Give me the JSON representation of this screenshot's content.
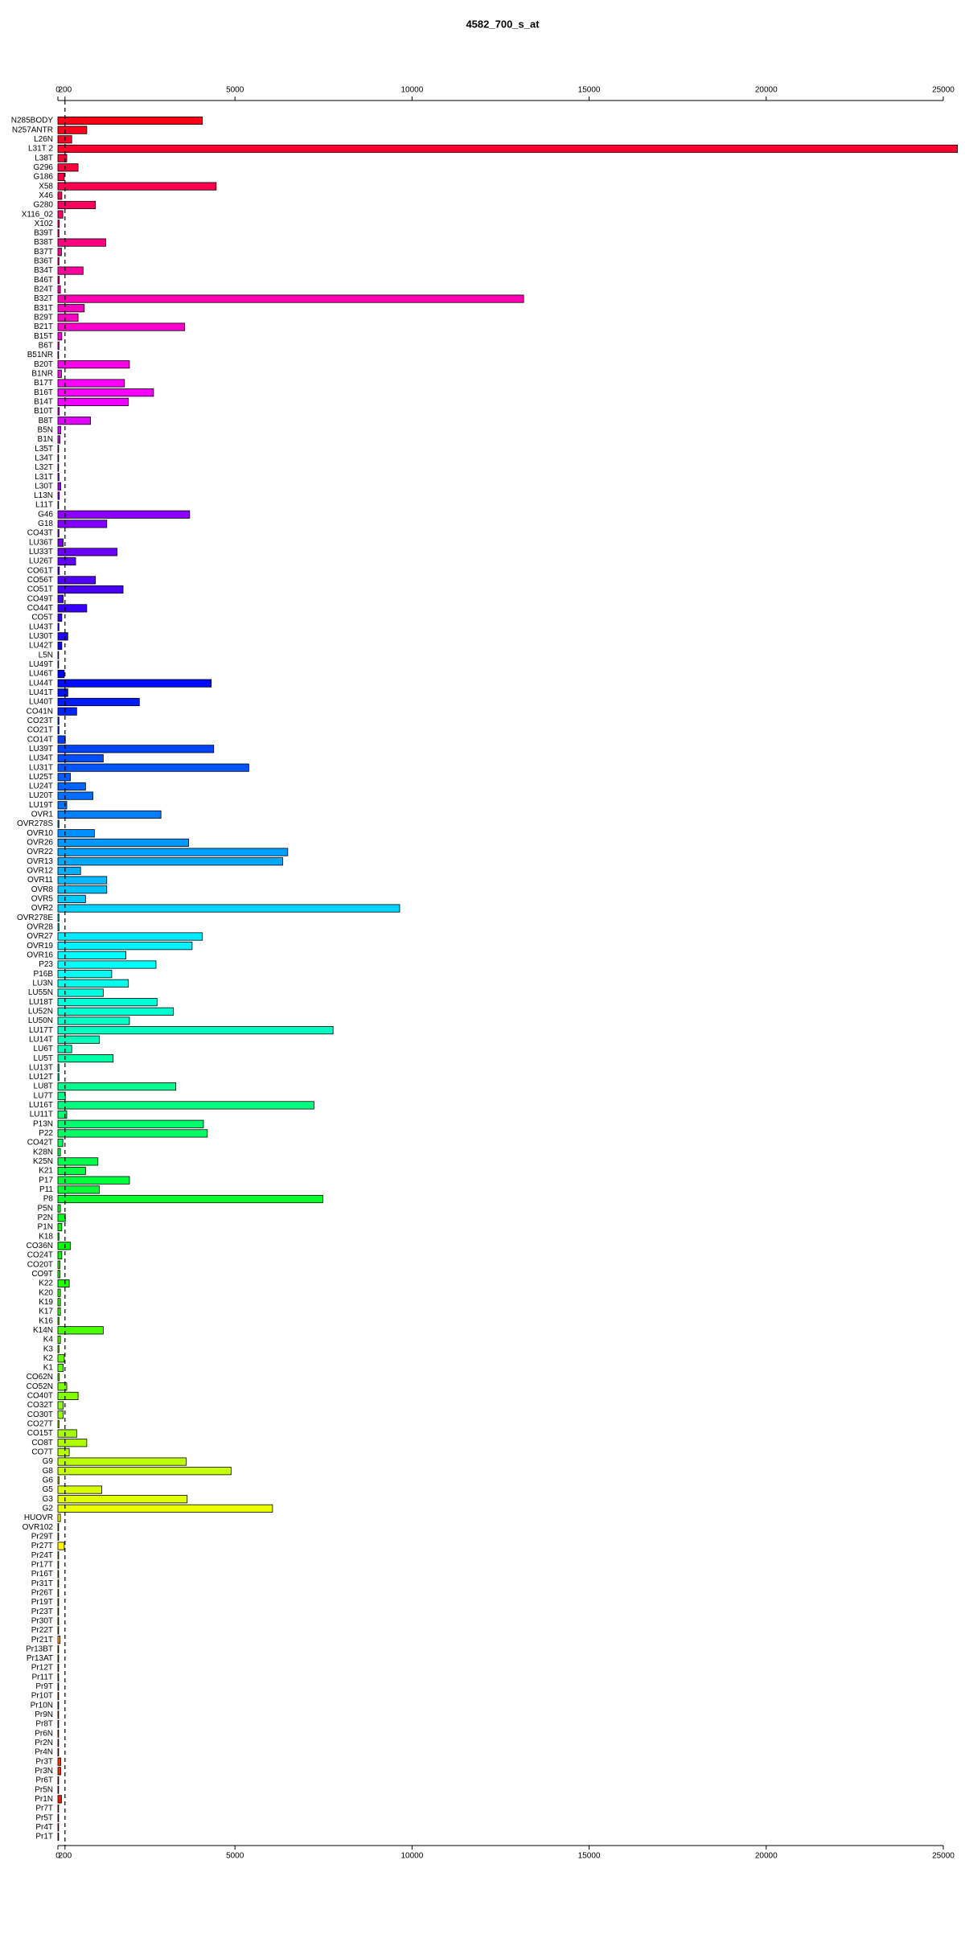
{
  "chart_data": {
    "type": "barh",
    "title": "4582_700_s_at",
    "categories": [
      "N285BODY",
      "N257ANTR",
      "L26N",
      "L31T 2",
      "L38T",
      "G296",
      "G186",
      "X58",
      "X46",
      "G280",
      "X116_02",
      "X102",
      "B39T",
      "B38T",
      "B37T",
      "B36T",
      "B34T",
      "B46T",
      "B24T",
      "B32T",
      "B31T",
      "B29T",
      "B21T",
      "B15T",
      "B6T",
      "B51NR",
      "B20T",
      "B1NR",
      "B17T",
      "B16T",
      "B14T",
      "B10T",
      "B8T",
      "B5N",
      "B1N",
      "L35T",
      "L34T",
      "L32T",
      "L31T",
      "L30T",
      "L13N",
      "L11T",
      "G46",
      "G18",
      "CO43T",
      "LU36T",
      "LU33T",
      "LU26T",
      "CO61T",
      "CO56T",
      "CO51T",
      "CO49T",
      "CO44T",
      "CO5T",
      "LU43T",
      "LU30T",
      "LU42T",
      "L5N",
      "LU49T",
      "LU46T",
      "LU44T",
      "LU41T",
      "LU40T",
      "CO41N",
      "CO23T",
      "CO21T",
      "CO14T",
      "LU39T",
      "LU34T",
      "LU31T",
      "LU25T",
      "LU24T",
      "LU20T",
      "LU19T",
      "OVR1",
      "OVR278S",
      "OVR10",
      "OVR26",
      "OVR22",
      "OVR13",
      "OVR12",
      "OVR11",
      "OVR8",
      "OVR5",
      "OVR2",
      "OVR278E",
      "OVR28",
      "OVR27",
      "OVR19",
      "OVR16",
      "P23",
      "P16B",
      "LU3N",
      "LU55N",
      "LU18T",
      "LU52N",
      "LU50N",
      "LU17T",
      "LU14T",
      "LU6T",
      "LU5T",
      "LU13T",
      "LU12T",
      "LU8T",
      "LU7T",
      "LU16T",
      "LU11T",
      "P13N",
      "P22",
      "CO42T",
      "K28N",
      "K25N",
      "K21",
      "P17",
      "P11",
      "P8",
      "P5N",
      "P2N",
      "P1N",
      "K18",
      "CO36N",
      "CO24T",
      "CO20T",
      "CO9T",
      "K22",
      "K20",
      "K19",
      "K17",
      "K16",
      "K14N",
      "K4",
      "K3",
      "K2",
      "K1",
      "CO62N",
      "CO52N",
      "CO40T",
      "CO32T",
      "CO30T",
      "CO27T",
      "CO15T",
      "CO8T",
      "CO7T",
      "G9",
      "G8",
      "G6",
      "G5",
      "G3",
      "G2",
      "HUOVR",
      "OVR102",
      "Pr29T",
      "Pr27T",
      "Pr24T",
      "Pr17T",
      "Pr16T",
      "Pr31T",
      "Pr26T",
      "Pr19T",
      "Pr23T",
      "Pr30T",
      "Pr22T",
      "Pr21T",
      "Pr13BT",
      "Pr13AT",
      "Pr12T",
      "Pr11T",
      "Pr9T",
      "Pr10T",
      "Pr10N",
      "Pr9N",
      "Pr8T",
      "Pr6N",
      "Pr2N",
      "Pr4N",
      "Pr3T",
      "Pr3N",
      "Pr6T",
      "Pr5N",
      "Pr1N",
      "Pr7T",
      "Pr5T",
      "Pr4T",
      "Pr1T"
    ],
    "values": [
      4080,
      815,
      390,
      25400,
      250,
      570,
      180,
      4470,
      110,
      1060,
      140,
      40,
      30,
      1350,
      100,
      30,
      710,
      40,
      70,
      13150,
      745,
      570,
      3580,
      110,
      30,
      20,
      2020,
      100,
      1880,
      2700,
      1990,
      40,
      920,
      80,
      60,
      20,
      20,
      20,
      30,
      80,
      40,
      20,
      3720,
      1380,
      30,
      150,
      1670,
      500,
      40,
      1060,
      1840,
      150,
      815,
      110,
      30,
      280,
      110,
      20,
      20,
      180,
      4330,
      280,
      2300,
      530,
      30,
      30,
      210,
      4400,
      1280,
      5390,
      355,
      780,
      990,
      250,
      2910,
      30,
      1030,
      3690,
      6490,
      6350,
      640,
      1380,
      1380,
      780,
      9650,
      30,
      30,
      4080,
      3790,
      1920,
      2770,
      1520,
      1990,
      1280,
      2800,
      3260,
      2020,
      7770,
      1170,
      390,
      1560,
      30,
      30,
      3330,
      210,
      7230,
      250,
      4110,
      4220,
      140,
      70,
      1130,
      780,
      2020,
      1170,
      7480,
      70,
      210,
      110,
      30,
      355,
      110,
      60,
      60,
      320,
      70,
      70,
      70,
      30,
      1280,
      70,
      30,
      180,
      150,
      40,
      250,
      570,
      150,
      150,
      30,
      530,
      815,
      320,
      3620,
      4890,
      30,
      1240,
      3650,
      6060,
      70,
      20,
      20,
      180,
      20,
      20,
      20,
      20,
      20,
      20,
      20,
      20,
      20,
      60,
      20,
      20,
      20,
      20,
      20,
      20,
      20,
      20,
      20,
      20,
      20,
      20,
      80,
      80,
      20,
      20,
      100,
      20,
      20,
      20,
      20
    ],
    "xlim": [
      0,
      25500
    ],
    "xticks": [
      0,
      200,
      5000,
      10000,
      15000,
      20000,
      25000
    ],
    "reference_line": 200,
    "palette": "rainbow",
    "bar_border": "#000000"
  }
}
